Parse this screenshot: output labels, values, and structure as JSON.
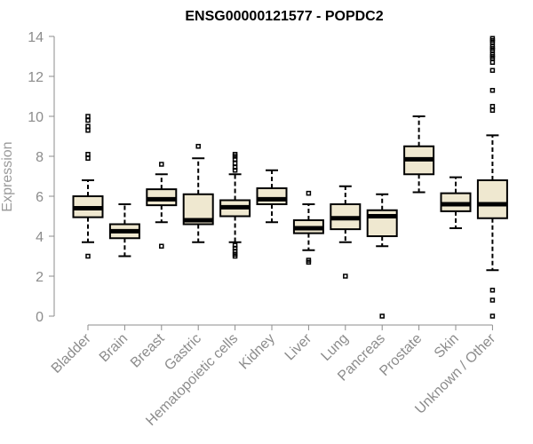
{
  "chart_data": {
    "type": "box",
    "title": "ENSG00000121577 - POPDC2",
    "xlabel": "",
    "ylabel": "Expression",
    "ylim": [
      0,
      14
    ],
    "yticks": [
      0,
      2,
      4,
      6,
      8,
      10,
      12,
      14
    ],
    "grid": false,
    "box_fill": "#efe8d0",
    "categories": [
      "Bladder",
      "Brain",
      "Breast",
      "Gastric",
      "Hematopoietic cells",
      "Kidney",
      "Liver",
      "Lung",
      "Pancreas",
      "Prostate",
      "Skin",
      "Unknown / Other"
    ],
    "boxes": [
      {
        "whisker_low": 3.7,
        "q1": 4.95,
        "median": 5.4,
        "q3": 6.0,
        "whisker_high": 6.8,
        "outliers": [
          3.0,
          7.9,
          8.1,
          9.3,
          9.5,
          9.8,
          10.0
        ]
      },
      {
        "whisker_low": 3.0,
        "q1": 3.9,
        "median": 4.25,
        "q3": 4.6,
        "whisker_high": 5.6,
        "outliers": []
      },
      {
        "whisker_low": 4.7,
        "q1": 5.55,
        "median": 5.85,
        "q3": 6.35,
        "whisker_high": 7.1,
        "outliers": [
          3.5,
          7.6
        ]
      },
      {
        "whisker_low": 3.7,
        "q1": 4.6,
        "median": 4.8,
        "q3": 6.1,
        "whisker_high": 7.9,
        "outliers": [
          8.5
        ]
      },
      {
        "whisker_low": 3.7,
        "q1": 5.0,
        "median": 5.45,
        "q3": 5.8,
        "whisker_high": 7.1,
        "outliers": [
          3.0,
          3.1,
          3.25,
          3.4,
          3.55,
          7.3,
          7.45,
          7.65,
          7.85,
          8.0,
          8.1
        ]
      },
      {
        "whisker_low": 4.7,
        "q1": 5.6,
        "median": 5.85,
        "q3": 6.4,
        "whisker_high": 7.3,
        "outliers": []
      },
      {
        "whisker_low": 3.3,
        "q1": 4.15,
        "median": 4.4,
        "q3": 4.8,
        "whisker_high": 5.6,
        "outliers": [
          2.7,
          2.8,
          6.15
        ]
      },
      {
        "whisker_low": 3.7,
        "q1": 4.35,
        "median": 4.9,
        "q3": 5.6,
        "whisker_high": 6.5,
        "outliers": [
          2.0
        ]
      },
      {
        "whisker_low": 3.5,
        "q1": 4.0,
        "median": 5.0,
        "q3": 5.3,
        "whisker_high": 6.1,
        "outliers": [
          0.0
        ]
      },
      {
        "whisker_low": 6.2,
        "q1": 7.1,
        "median": 7.85,
        "q3": 8.5,
        "whisker_high": 10.0,
        "outliers": []
      },
      {
        "whisker_low": 4.4,
        "q1": 5.25,
        "median": 5.6,
        "q3": 6.15,
        "whisker_high": 6.95,
        "outliers": []
      },
      {
        "whisker_low": 2.3,
        "q1": 4.9,
        "median": 5.6,
        "q3": 6.8,
        "whisker_high": 9.05,
        "outliers": [
          0.0,
          0.8,
          1.3,
          10.3,
          10.5,
          11.3,
          12.3,
          12.7,
          12.9,
          13.0,
          13.1,
          13.3,
          13.4,
          13.5,
          13.7,
          13.8,
          13.9
        ]
      }
    ]
  }
}
